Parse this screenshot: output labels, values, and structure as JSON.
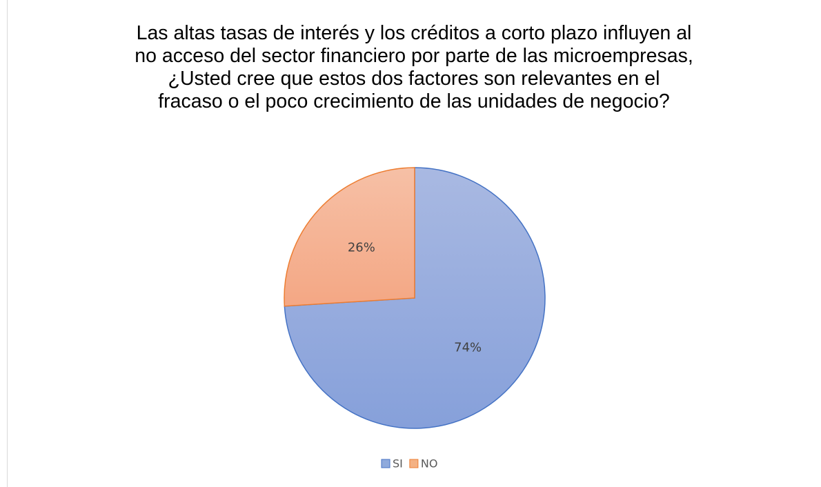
{
  "chart_data": {
    "type": "pie",
    "title": "Las altas tasas de interés y los créditos a corto plazo influyen al no acceso del sector financiero por parte de las microempresas, ¿Usted cree que estos dos factores son relevantes en el fracaso o el poco crecimiento de las unidades de negocio?",
    "categories": [
      "SI",
      "NO"
    ],
    "values": [
      74,
      26
    ],
    "value_labels": [
      "74%",
      "26%"
    ],
    "colors": [
      "#8faadc",
      "#f4b183"
    ],
    "legend": "bottom"
  }
}
